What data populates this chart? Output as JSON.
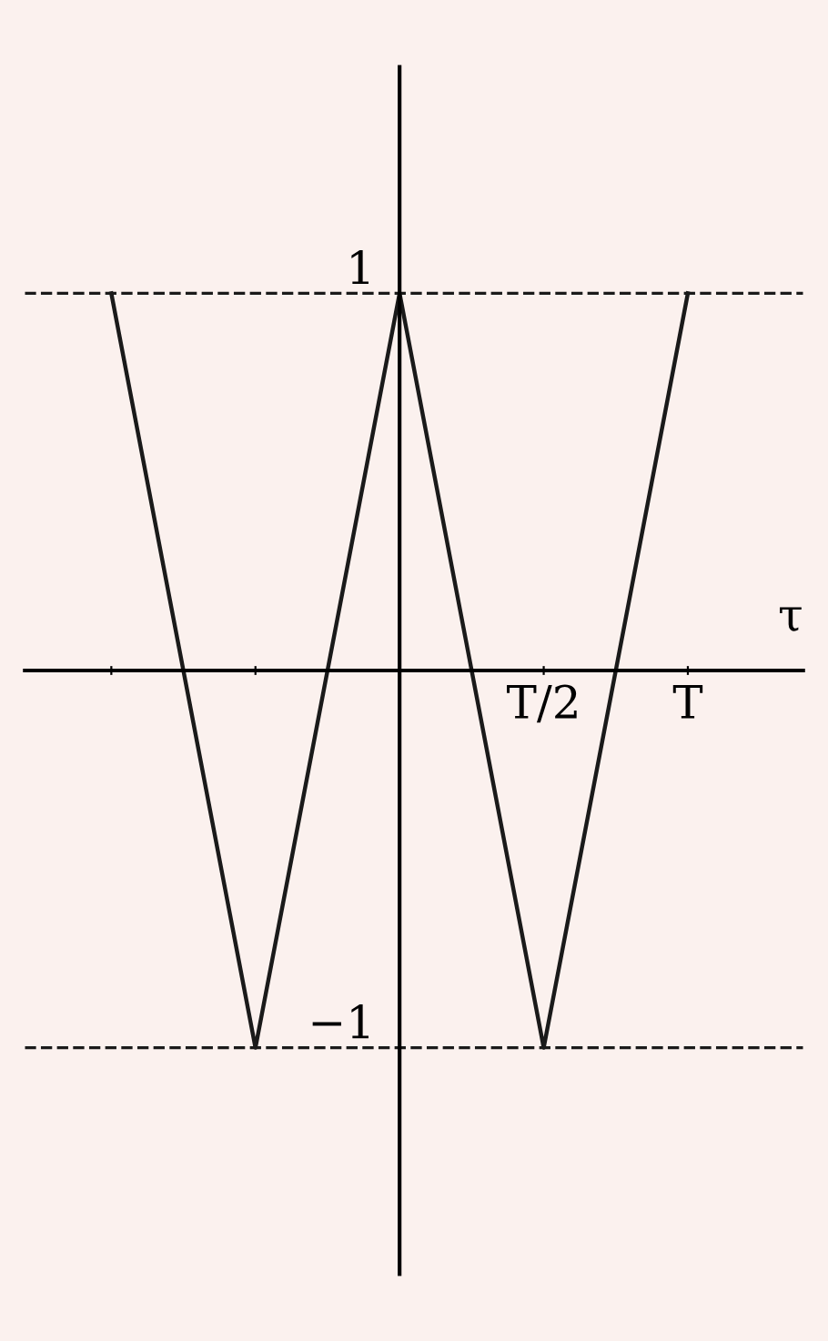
{
  "chart_data": {
    "type": "line",
    "color": "#1a1a1a",
    "line_style": "solid",
    "marker": "none",
    "categories": [
      null,
      null,
      null,
      "T/2",
      "T"
    ],
    "values": [
      1,
      -1,
      1,
      -1,
      1
    ],
    "xlabel": "τ",
    "ylim": [
      -1.6,
      1.6
    ],
    "yticks": [
      1,
      {
        "value": -1,
        "label": "−1"
      }
    ],
    "ref_lines": [
      {
        "axis": "y",
        "value": 1,
        "line_style": "dashed",
        "color": "#1a1a1a"
      },
      {
        "axis": "y",
        "value": -1,
        "line_style": "dashed",
        "color": "#1a1a1a"
      }
    ]
  }
}
